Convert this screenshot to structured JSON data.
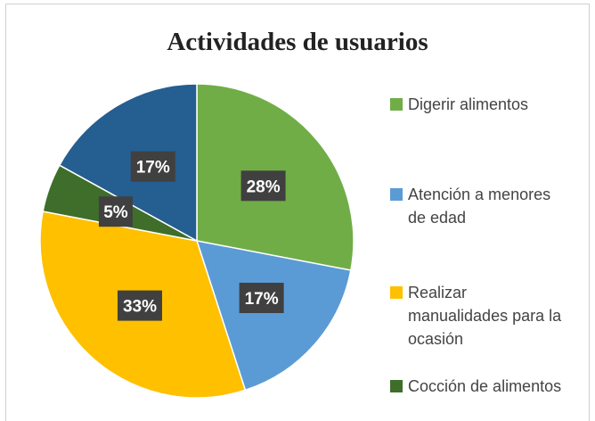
{
  "chart_data": {
    "type": "pie",
    "title": "Actividades de usuarios",
    "categories": [
      "Digerir alimentos",
      "Atención a menores de edad",
      "Realizar manualidades para la ocasión",
      "Cocción de alimentos",
      null
    ],
    "values": [
      28,
      17,
      33,
      5,
      17
    ],
    "value_labels": [
      "28%",
      "17%",
      "33%",
      "5%",
      "17%"
    ],
    "colors": [
      "#70ad47",
      "#5b9bd5",
      "#ffc000",
      "#3f6e2a",
      "#255e91"
    ],
    "legend": "right"
  }
}
